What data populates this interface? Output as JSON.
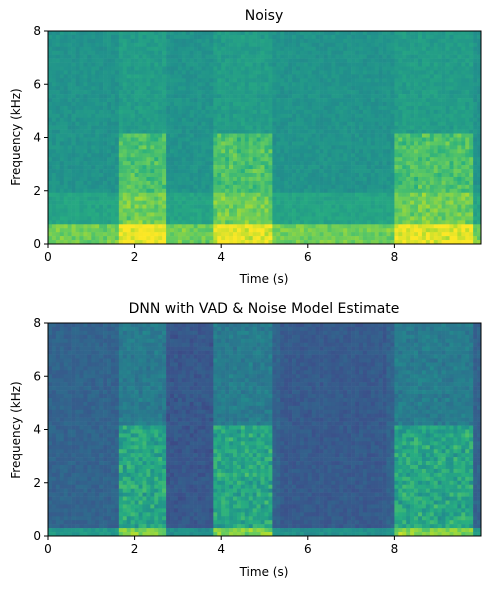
{
  "chart_data": [
    {
      "type": "heatmap",
      "title": "Noisy",
      "xlabel": "Time (s)",
      "ylabel": "Frequency (kHz)",
      "xlim": [
        0,
        10
      ],
      "ylim": [
        0,
        8
      ],
      "xticks": [
        "0",
        "2",
        "4",
        "6",
        "8"
      ],
      "yticks": [
        "0",
        "2",
        "4",
        "6",
        "8"
      ],
      "colormap": "viridis",
      "speech_segments_s": [
        [
          1.6,
          2.7
        ],
        [
          3.8,
          5.2
        ],
        [
          8.0,
          9.8
        ]
      ],
      "background_noise": "high"
    },
    {
      "type": "heatmap",
      "title": "DNN with VAD & Noise Model Estimate",
      "xlabel": "Time (s)",
      "ylabel": "Frequency (kHz)",
      "xlim": [
        0,
        10
      ],
      "ylim": [
        0,
        8
      ],
      "xticks": [
        "0",
        "2",
        "4",
        "6",
        "8"
      ],
      "yticks": [
        "0",
        "2",
        "4",
        "6",
        "8"
      ],
      "colormap": "viridis",
      "speech_segments_s": [
        [
          1.6,
          2.7
        ],
        [
          3.8,
          5.2
        ],
        [
          8.0,
          9.8
        ]
      ],
      "background_noise": "low"
    }
  ]
}
